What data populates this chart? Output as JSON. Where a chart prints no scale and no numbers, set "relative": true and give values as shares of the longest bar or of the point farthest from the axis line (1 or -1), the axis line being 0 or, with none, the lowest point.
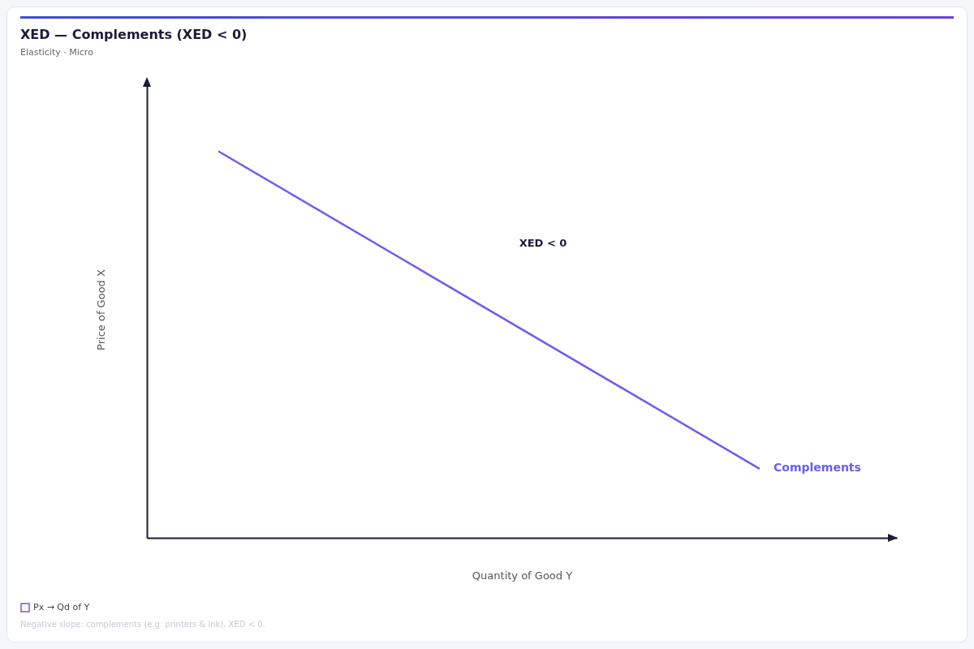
{
  "chart_data": {
    "type": "line",
    "title": "XED — Complements (XED < 0)",
    "subtitle": "Elasticity · Micro",
    "xlabel": "Quantity of Good Y",
    "ylabel": "Price of Good X",
    "relative": true,
    "categories": [
      null,
      null
    ],
    "series": [
      {
        "name": "Px → Qd of Y",
        "color": "#6c5cf6",
        "values": [
          1,
          0.18
        ]
      }
    ],
    "annotations": [
      "XED < 0",
      "Complements",
      "Negative slope: complements (e.g. printers & ink). XED < 0."
    ],
    "legend": "bottom left",
    "grid": false,
    "marker": "none",
    "line_style": "solid"
  }
}
